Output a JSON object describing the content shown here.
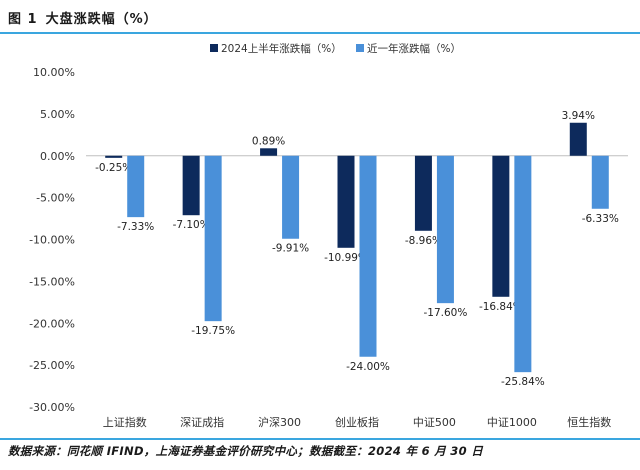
{
  "figure": {
    "number": "图 1",
    "title": "大盘涨跌幅（%）",
    "source": "数据来源：同花顺 IFIND，上海证券基金评价研究中心；数据截至：2024 年 6 月 30 日"
  },
  "chart_data": {
    "type": "bar",
    "categories": [
      "上证指数",
      "深证成指",
      "沪深300",
      "创业板指",
      "中证500",
      "中证1000",
      "恒生指数"
    ],
    "series": [
      {
        "name": "2024上半年涨跌幅（%）",
        "values": [
          -0.25,
          -7.1,
          0.89,
          -10.99,
          -8.96,
          -16.84,
          3.94
        ],
        "color": "#0d2a5c",
        "labels": [
          "-0.25%",
          "-7.10%",
          "0.89%",
          "-10.99%",
          "-8.96%",
          "-16.84%",
          "3.94%"
        ]
      },
      {
        "name": "近一年涨跌幅（%）",
        "values": [
          -7.33,
          -19.75,
          -9.91,
          -24.0,
          -17.6,
          -25.84,
          -6.33
        ],
        "color": "#4a90d9",
        "labels": [
          "-7.33%",
          "-19.75%",
          "-9.91%",
          "-24.00%",
          "-17.60%",
          "-25.84%",
          "-6.33%"
        ]
      }
    ],
    "ylim": [
      -30,
      10
    ],
    "yticks": [
      10,
      5,
      0,
      -5,
      -10,
      -15,
      -20,
      -25,
      -30
    ],
    "ytick_labels": [
      "10.00%",
      "5.00%",
      "0.00%",
      "-5.00%",
      "-10.00%",
      "-15.00%",
      "-20.00%",
      "-25.00%",
      "-30.00%"
    ],
    "legend_position": "top-center",
    "grid": false
  }
}
